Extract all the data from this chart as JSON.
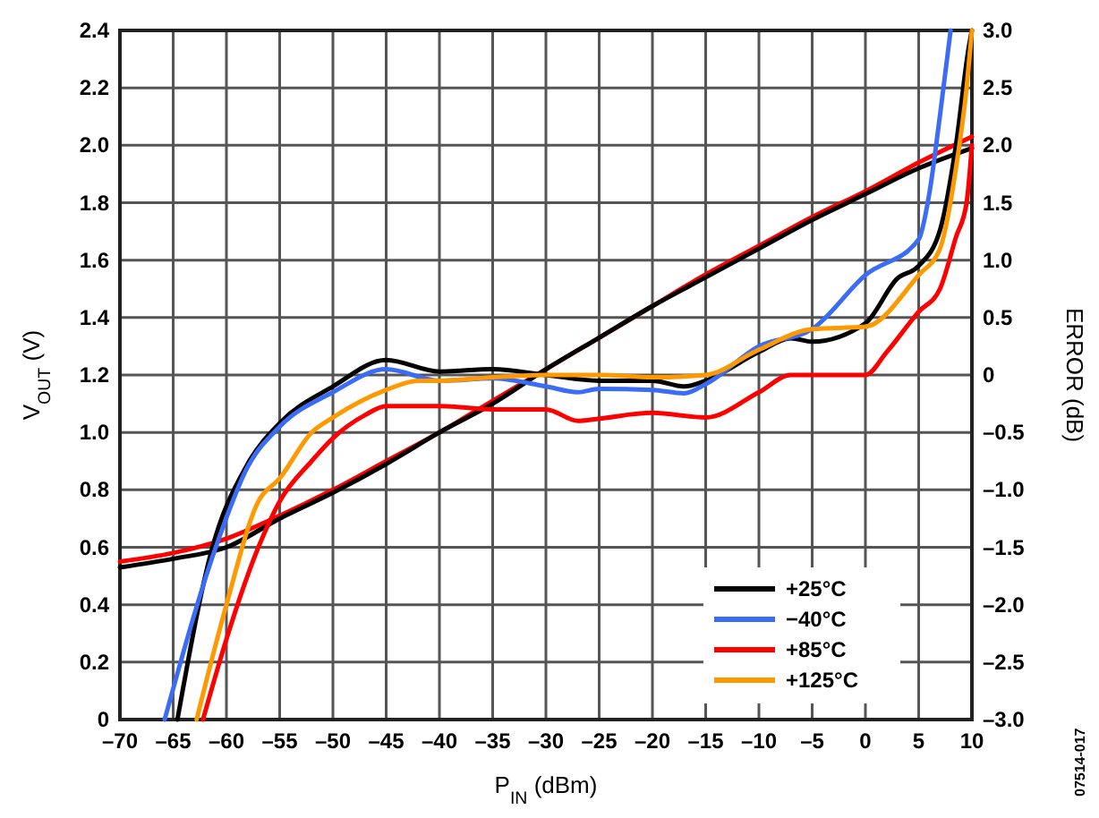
{
  "chart_data": {
    "type": "line",
    "xlabel": "P$_{IN}$ (dBm)",
    "ylabel": "V$_{OUT}$ (V)",
    "y2label": "ERROR (dB)",
    "annotations": [
      "07514-017"
    ],
    "xlim": [
      -70,
      10
    ],
    "ylim": [
      0,
      2.4
    ],
    "y2lim": [
      -3,
      3
    ],
    "xticks": [
      {
        "value": -70,
        "label": "–70"
      },
      {
        "value": -65,
        "label": "–65"
      },
      {
        "value": -60,
        "label": "–60"
      },
      {
        "value": -55,
        "label": "–55"
      },
      {
        "value": -50,
        "label": "–50"
      },
      {
        "value": -45,
        "label": "–45"
      },
      {
        "value": -40,
        "label": "–40"
      },
      {
        "value": -35,
        "label": "–35"
      },
      {
        "value": -30,
        "label": "–30"
      },
      {
        "value": -25,
        "label": "–25"
      },
      {
        "value": -20,
        "label": "–20"
      },
      {
        "value": -15,
        "label": "–15"
      },
      {
        "value": -10,
        "label": "–10"
      },
      {
        "value": -5,
        "label": "–5"
      },
      0,
      5,
      10
    ],
    "yticks": [
      0,
      0.2,
      0.4,
      0.6,
      0.8,
      {
        "value": 1,
        "label": "1.0"
      },
      1.2,
      1.4,
      1.6,
      1.8,
      {
        "value": 2,
        "label": "2.0"
      },
      2.2,
      2.4
    ],
    "y2ticks": [
      {
        "value": -3,
        "label": "–3.0"
      },
      {
        "value": -2.5,
        "label": "–2.5"
      },
      {
        "value": -2,
        "label": "–2.0"
      },
      {
        "value": -1.5,
        "label": "–1.5"
      },
      {
        "value": -1,
        "label": "–1.0"
      },
      {
        "value": -0.5,
        "label": "–0.5"
      },
      0,
      0.5,
      {
        "value": 1,
        "label": "1.0"
      },
      1.5,
      {
        "value": 2,
        "label": "2.0"
      },
      2.5,
      {
        "value": 3,
        "label": "3.0"
      }
    ],
    "grid": true,
    "legend": "bottom right",
    "series": [
      {
        "color": "#ff0000",
        "x": [
          -70,
          -65,
          -60,
          -55,
          -50,
          -45,
          -40,
          -35,
          -30,
          -25,
          -20,
          -15,
          -10,
          -5,
          0,
          5,
          10
        ],
        "values": [
          0.55,
          0.58,
          0.63,
          0.71,
          0.8,
          0.9,
          1.0,
          1.11,
          1.22,
          1.33,
          1.44,
          1.55,
          1.65,
          1.75,
          1.84,
          1.94,
          2.03
        ]
      },
      {
        "color": "#000000",
        "x": [
          -70,
          -65,
          -60,
          -55,
          -50,
          -45,
          -40,
          -35,
          -30,
          -25,
          -20,
          -15,
          -10,
          -5,
          0,
          5,
          10
        ],
        "values": [
          0.53,
          0.56,
          0.6,
          0.7,
          0.79,
          0.89,
          1.0,
          1.1,
          1.22,
          1.33,
          1.44,
          1.54,
          1.64,
          1.74,
          1.83,
          1.92,
          1.99
        ]
      },
      {
        "name": "+25°C",
        "color": "#000000",
        "axis": "y2",
        "x": [
          -64.6,
          -61.4,
          -58.1,
          -55,
          -50,
          -45,
          -40,
          -35,
          -30,
          -25,
          -20,
          -17,
          -15,
          -10,
          -7,
          -5,
          0,
          3,
          5,
          7,
          8.5,
          9.7,
          10
        ],
        "values": [
          -3,
          -1.53,
          -0.79,
          -0.42,
          -0.1,
          0.13,
          0.03,
          0.05,
          0,
          -0.05,
          -0.05,
          -0.1,
          -0.05,
          0.2,
          0.32,
          0.29,
          0.45,
          0.84,
          0.95,
          1.26,
          2.0,
          2.85,
          3.0
        ]
      },
      {
        "name": "−40°C",
        "color": "#3b6cf5",
        "axis": "y2",
        "x": [
          -65.8,
          -61,
          -58,
          -55,
          -50,
          -45,
          -40,
          -35,
          -30,
          -27,
          -25,
          -20,
          -17,
          -15,
          -10,
          -5,
          0,
          5,
          6,
          7,
          8
        ],
        "values": [
          -3,
          -1.5,
          -0.8,
          -0.45,
          -0.15,
          0.05,
          -0.05,
          -0.03,
          -0.1,
          -0.15,
          -0.12,
          -0.13,
          -0.16,
          -0.08,
          0.25,
          0.4,
          0.87,
          1.18,
          1.58,
          2.26,
          3.0
        ]
      },
      {
        "name": "+85°C",
        "color": "#ff0000",
        "axis": "y2",
        "x": [
          -62.2,
          -60,
          -57,
          -55,
          -52,
          -50,
          -47,
          -45,
          -40,
          -35,
          -30,
          -27,
          -25,
          -20,
          -15,
          -10,
          -7,
          -5,
          0,
          2,
          5,
          7,
          8.5,
          9.5,
          10
        ],
        "values": [
          -3,
          -2.3,
          -1.5,
          -1.1,
          -0.75,
          -0.55,
          -0.35,
          -0.27,
          -0.27,
          -0.3,
          -0.3,
          -0.4,
          -0.38,
          -0.33,
          -0.37,
          -0.15,
          0,
          0,
          0,
          0.2,
          0.55,
          0.75,
          1.2,
          1.5,
          2.0
        ]
      },
      {
        "name": "+125°C",
        "color": "#ff9900",
        "axis": "y2",
        "x": [
          -62.8,
          -60,
          -57,
          -55,
          -52,
          -50,
          -45,
          -42,
          -40,
          -35,
          -30,
          -25,
          -20,
          -15,
          -10,
          -5,
          0,
          5,
          7,
          8.5,
          9.5,
          10
        ],
        "values": [
          -3,
          -2.0,
          -1.1,
          -0.9,
          -0.5,
          -0.37,
          -0.13,
          -0.05,
          -0.05,
          -0.02,
          0,
          0,
          -0.02,
          0,
          0.22,
          0.4,
          0.42,
          0.87,
          1.1,
          1.8,
          2.5,
          3.0
        ]
      }
    ]
  }
}
